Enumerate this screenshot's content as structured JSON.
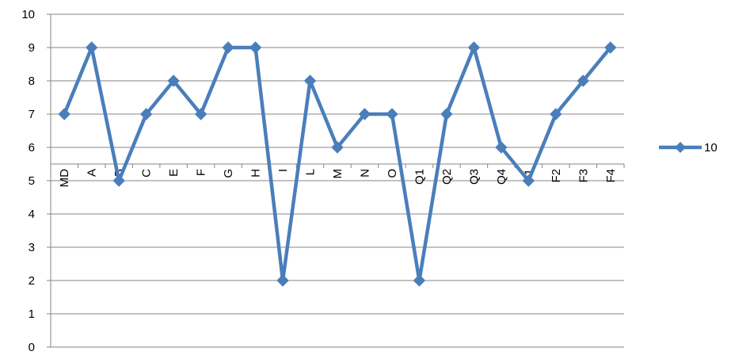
{
  "chart_data": {
    "type": "line",
    "categories": [
      "MD",
      "A",
      "B",
      "C",
      "E",
      "F",
      "G",
      "H",
      "I",
      "L",
      "M",
      "N",
      "O",
      "Q1",
      "Q2",
      "Q3",
      "Q4",
      "F1",
      "F2",
      "F3",
      "F4"
    ],
    "series": [
      {
        "name": "10",
        "values": [
          7,
          9,
          5,
          7,
          8,
          7,
          9,
          9,
          2,
          8,
          6,
          7,
          7,
          2,
          7,
          9,
          6,
          5,
          7,
          8,
          9
        ],
        "color": "#4a7ebb",
        "marker": "diamond"
      }
    ],
    "ylim": [
      0,
      10
    ],
    "yticks": [
      "0",
      "1",
      "2",
      "3",
      "4",
      "5",
      "6",
      "7",
      "8",
      "9",
      "10"
    ],
    "x_axis_crosses_at": 5.5,
    "grid": "horizontal",
    "legend_placement": "right"
  }
}
